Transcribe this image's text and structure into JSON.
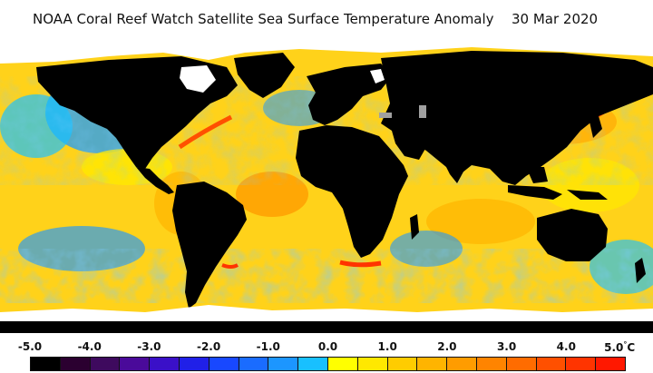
{
  "header": {
    "title": "NOAA Coral Reef Watch Satellite Sea Surface Temperature Anomaly",
    "date": "30 Mar 2020"
  },
  "legend": {
    "ticks": [
      "-5.0",
      "-4.0",
      "-3.0",
      "-2.0",
      "-1.0",
      "0.0",
      "1.0",
      "2.0",
      "3.0",
      "4.0",
      "5.0"
    ],
    "unit": "°C",
    "colors": [
      "#000000",
      "#2b0030",
      "#3e0a5e",
      "#4a0a9a",
      "#3a10c8",
      "#2020e8",
      "#1848ff",
      "#1a6cff",
      "#1c96ff",
      "#18c0ff",
      "#ffff00",
      "#ffe800",
      "#ffcc00",
      "#ffb400",
      "#ff9c00",
      "#ff8400",
      "#ff6c00",
      "#ff5000",
      "#ff3400",
      "#ff1800"
    ]
  },
  "map_colors": {
    "ocean_base": "#ffd21a",
    "land": "#000000",
    "ice": "#ffffff",
    "cool": "#1c9cff",
    "warm": "#ff9a10"
  }
}
